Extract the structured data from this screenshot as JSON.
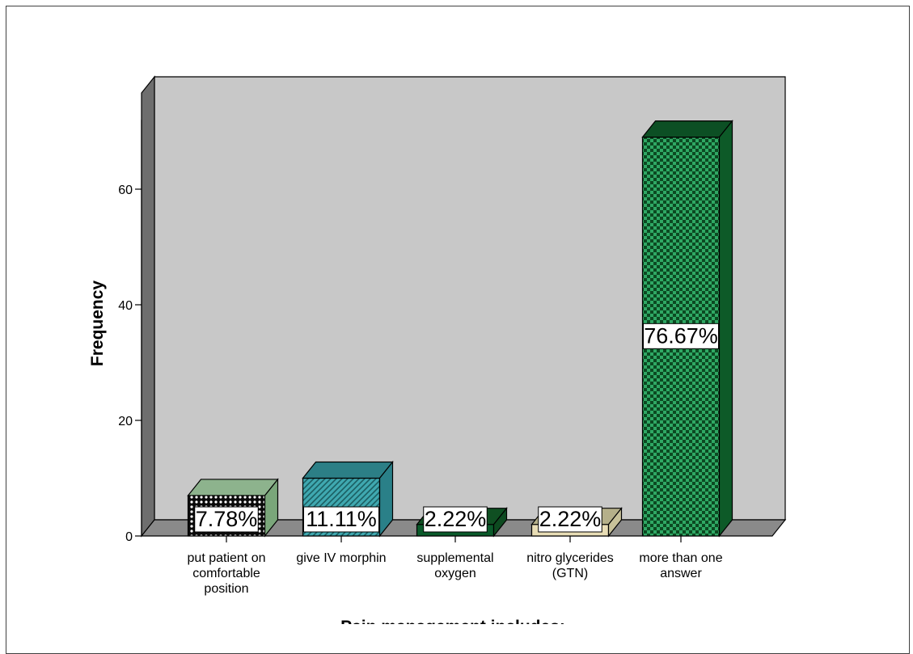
{
  "chart_data": {
    "type": "bar",
    "style": "3d",
    "title": "",
    "xlabel": "Pain management includes:",
    "ylabel": "Frequency",
    "ylim": [
      0,
      72
    ],
    "yticks": [
      0,
      20,
      40,
      60
    ],
    "grid": false,
    "legend": "none",
    "categories": [
      "put patient on comfortable position",
      "give IV morphin",
      "supplemental oxygen",
      "nitro glycerides (GTN)",
      "more than one answer"
    ],
    "category_lines": [
      [
        "put patient on",
        "comfortable",
        "position"
      ],
      [
        "give IV morphin"
      ],
      [
        "supplemental",
        "oxygen"
      ],
      [
        "nitro glycerides",
        "(GTN)"
      ],
      [
        "more than one",
        "answer"
      ]
    ],
    "values": [
      7,
      10,
      2,
      2,
      69
    ],
    "data_labels": [
      "7.78%",
      "11.11%",
      "2.22%",
      "2.22%",
      "76.67%"
    ],
    "bar_styles": [
      {
        "front": "#0a0a0a",
        "top": "#8db38d",
        "side": "#7aa67a",
        "pattern": "dots"
      },
      {
        "front": "#3fa8b0",
        "top": "#2c7f86",
        "side": "#2a8088",
        "pattern": "hatch"
      },
      {
        "front": "#0a5a2a",
        "top": "#0f4f22",
        "side": "#0d4a20",
        "pattern": "solid"
      },
      {
        "front": "#e8ddb5",
        "top": "#b5b08a",
        "side": "#c8c29a",
        "pattern": "solid"
      },
      {
        "front": "#2fa864",
        "top": "#0c4f24",
        "side": "#0d5a28",
        "pattern": "checker"
      }
    ],
    "colors": {
      "wall": "#c8c8c8",
      "wall_side": "#6e6e6e",
      "floor": "#8a8a8a"
    }
  }
}
